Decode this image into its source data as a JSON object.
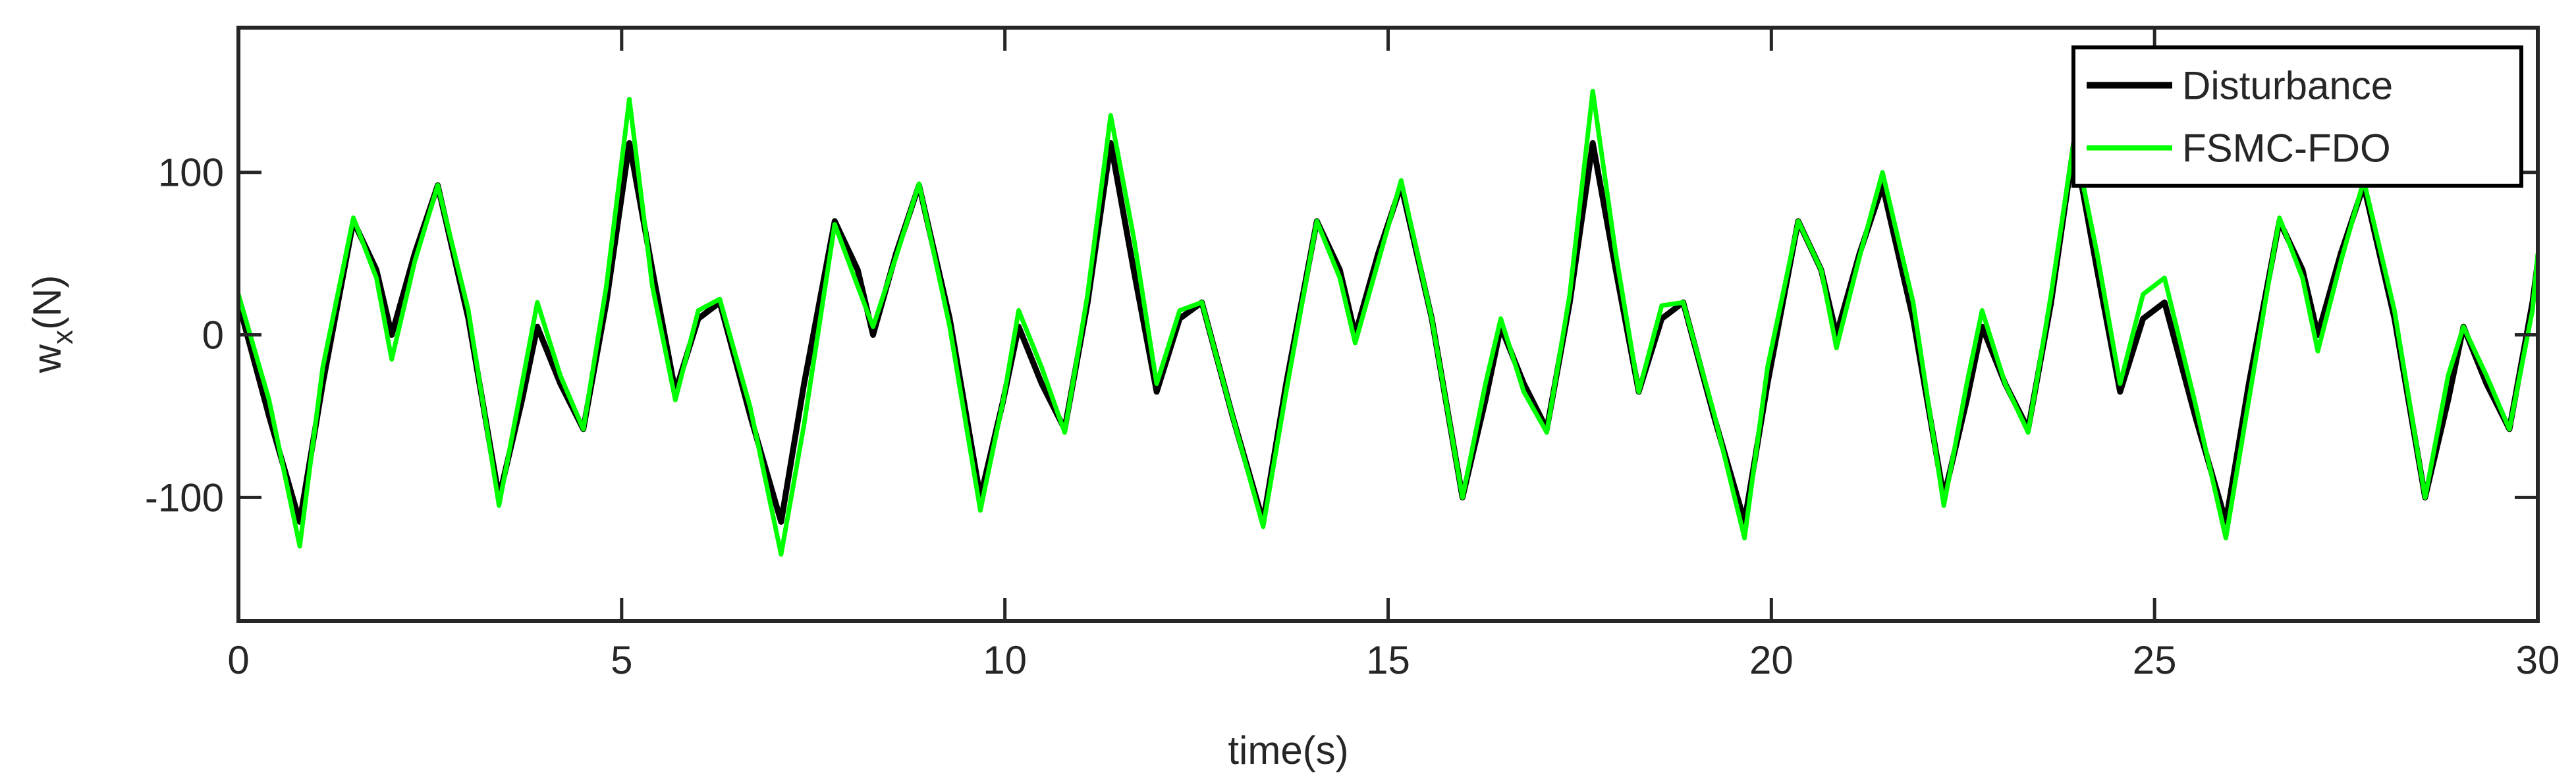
{
  "chart_data": {
    "type": "line",
    "xlabel": "time(s)",
    "ylabel_main": "w",
    "ylabel_sub": "x",
    "ylabel_rest": "(N)",
    "xlim": [
      0,
      30
    ],
    "xticks": [
      0,
      5,
      10,
      15,
      20,
      25,
      30
    ],
    "ylim": [
      -176,
      189
    ],
    "yticks": [
      -100,
      0,
      100
    ],
    "legend": "upper right",
    "x": [
      0,
      0.4,
      0.8,
      1.1,
      1.5,
      1.8,
      2,
      2.3,
      2.6,
      3,
      3.4,
      3.7,
      3.9,
      4.2,
      4.5,
      4.8,
      5.1,
      5.4,
      5.7,
      6,
      6.28,
      6.68,
      7.08,
      7.38,
      7.78,
      8.08,
      8.28,
      8.58,
      8.88,
      9.28,
      9.68,
      9.98,
      10.18,
      10.48,
      10.78,
      11.08,
      11.38,
      11.68,
      11.98,
      12.28,
      12.57,
      12.97,
      13.37,
      13.67,
      14.07,
      14.37,
      14.57,
      14.87,
      15.17,
      15.57,
      15.97,
      16.27,
      16.47,
      16.77,
      17.07,
      17.37,
      17.67,
      17.97,
      18.27,
      18.57,
      18.85,
      19.25,
      19.65,
      19.95,
      20.35,
      20.65,
      20.85,
      21.15,
      21.45,
      21.85,
      22.25,
      22.55,
      22.75,
      23.05,
      23.35,
      23.65,
      23.95,
      24.25,
      24.55,
      24.85,
      25.13,
      25.53,
      25.93,
      26.23,
      26.63,
      26.93,
      27.13,
      27.43,
      27.73,
      28.13,
      28.53,
      28.83,
      29.03,
      29.33,
      29.63,
      29.93,
      30
    ],
    "series": [
      {
        "name": "Disturbance",
        "color": "#000000",
        "values": [
          20,
          -50,
          -115,
          -30,
          70,
          40,
          0,
          50,
          92,
          10,
          -100,
          -40,
          5,
          -30,
          -58,
          20,
          118,
          40,
          -35,
          10,
          20,
          -50,
          -115,
          -30,
          70,
          40,
          0,
          50,
          92,
          10,
          -100,
          -40,
          5,
          -30,
          -58,
          20,
          118,
          40,
          -35,
          10,
          20,
          -50,
          -115,
          -30,
          70,
          40,
          0,
          50,
          92,
          10,
          -100,
          -40,
          5,
          -30,
          -58,
          20,
          118,
          40,
          -35,
          10,
          20,
          -50,
          -115,
          -30,
          70,
          40,
          0,
          50,
          92,
          10,
          -100,
          -40,
          5,
          -30,
          -58,
          20,
          118,
          40,
          -35,
          10,
          20,
          -50,
          -115,
          -30,
          70,
          40,
          0,
          50,
          92,
          10,
          -100,
          -40,
          5,
          -30,
          -58,
          20,
          45
        ]
      },
      {
        "name": "FSMC-FDO",
        "color": "#00ff00",
        "values": [
          25,
          -40,
          -130,
          -20,
          72,
          35,
          -15,
          45,
          92,
          15,
          -105,
          -30,
          20,
          -25,
          -58,
          30,
          145,
          30,
          -40,
          15,
          22,
          -45,
          -135,
          -55,
          68,
          30,
          5,
          48,
          93,
          5,
          -108,
          -40,
          15,
          -20,
          -60,
          25,
          135,
          60,
          -30,
          15,
          20,
          -50,
          -118,
          -35,
          70,
          35,
          -5,
          45,
          95,
          10,
          -100,
          -30,
          10,
          -35,
          -60,
          25,
          150,
          50,
          -35,
          18,
          20,
          -48,
          -125,
          -20,
          70,
          40,
          -8,
          48,
          100,
          20,
          -105,
          -30,
          15,
          -30,
          -60,
          25,
          120,
          50,
          -30,
          25,
          35,
          -42,
          -125,
          -40,
          72,
          35,
          -10,
          45,
          95,
          15,
          -100,
          -25,
          5,
          -25,
          -58,
          15,
          50
        ]
      }
    ]
  }
}
